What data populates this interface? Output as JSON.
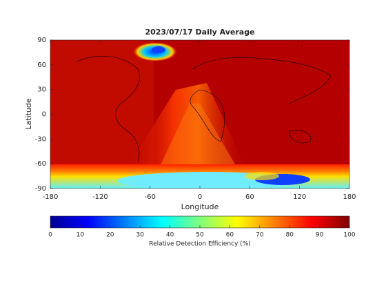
{
  "chart_data": {
    "type": "map",
    "title": "2023/07/17 Daily Average",
    "xlabel": "Longitude",
    "ylabel": "Latitude",
    "xlim": [
      -180,
      180
    ],
    "xticks": [
      -180,
      -120,
      -60,
      0,
      60,
      120,
      180
    ],
    "ylim": [
      -90,
      90
    ],
    "yticks": [
      -90,
      -60,
      -30,
      0,
      30,
      60,
      90
    ],
    "colorbar": {
      "label": "Relative Detection Efficiency (%)",
      "lim": [
        0,
        100
      ],
      "ticks": [
        0,
        10,
        20,
        30,
        40,
        50,
        60,
        70,
        80,
        90,
        100
      ]
    }
  }
}
